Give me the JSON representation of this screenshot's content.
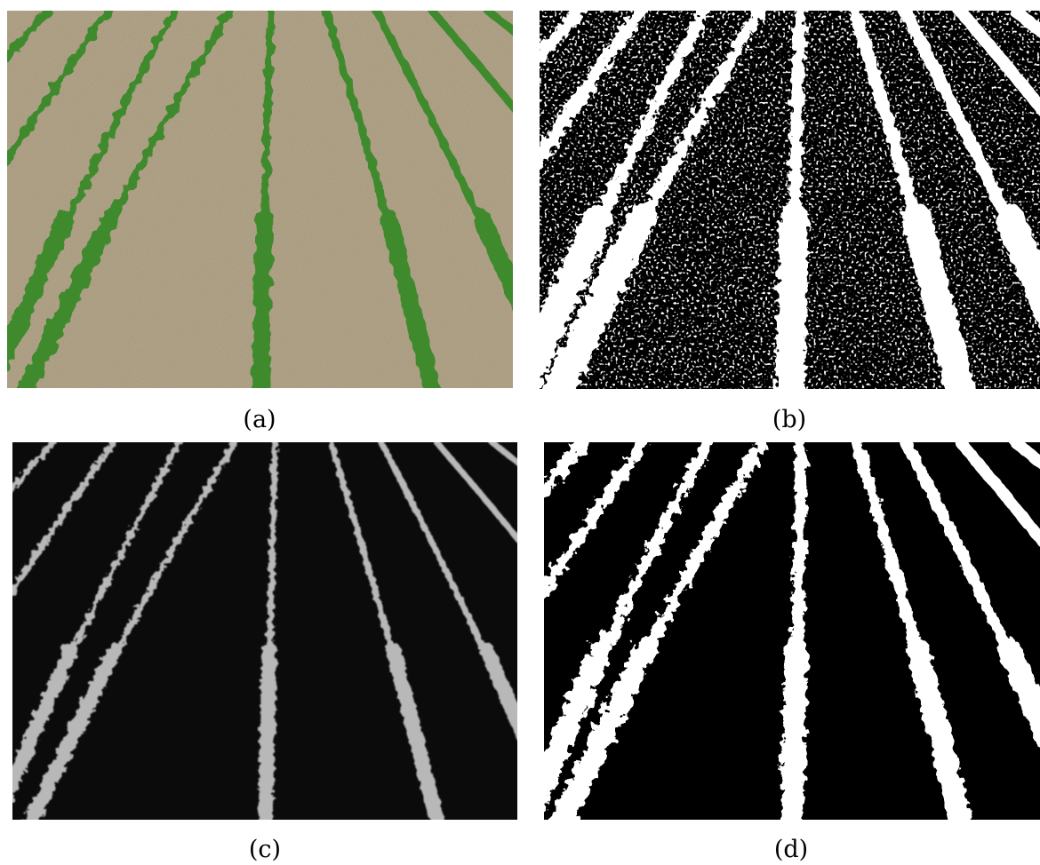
{
  "figure": {
    "panels": [
      {
        "id": "a",
        "label": "(a)",
        "content": "rgb-cornfield-photo"
      },
      {
        "id": "b",
        "label": "(b)",
        "content": "noisy-binary-segmentation"
      },
      {
        "id": "c",
        "label": "(c)",
        "content": "grayscale-vegetation-index"
      },
      {
        "id": "d",
        "label": "(d)",
        "content": "clean-binary-segmentation"
      }
    ],
    "colors": {
      "soil": "#a89a80",
      "crop": "#3f8a2e",
      "dark": "#0a0a0a",
      "plant_gray": "#bdbdbd",
      "mask_white": "#ffffff",
      "mask_black": "#000000"
    }
  }
}
